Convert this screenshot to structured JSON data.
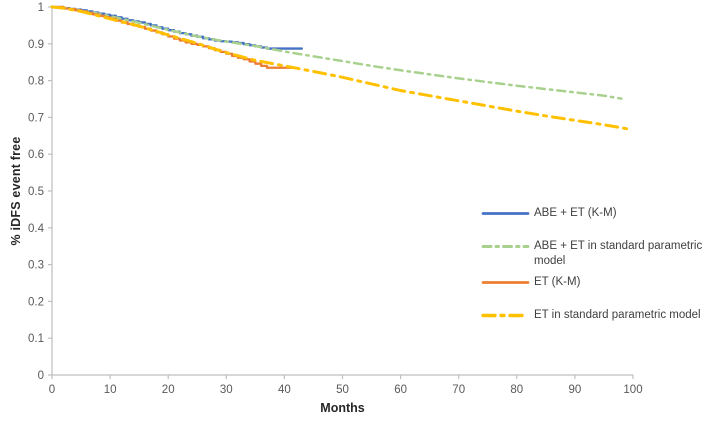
{
  "figure": {
    "background": "#ffffff"
  },
  "chart_data": {
    "type": "line",
    "title": "",
    "xlabel": "Months",
    "ylabel": "% iDFS event free",
    "xlim": [
      0,
      100
    ],
    "ylim": [
      0,
      1
    ],
    "x_ticks": [
      0,
      10,
      20,
      30,
      40,
      50,
      60,
      70,
      80,
      90,
      100
    ],
    "y_ticks": [
      1,
      0.9,
      0.8,
      0.7,
      0.6,
      0.5,
      0.4,
      0.3,
      0.2,
      0.1,
      0
    ],
    "grid": false,
    "legend_position": "right-middle",
    "axis_color": "#BFBFBF",
    "tick_label_color": "#595959",
    "series": [
      {
        "id": "abe-et-km",
        "name": "ABE + ET (K-M)",
        "color": "#4472C4",
        "line_style": "solid",
        "interpolation": "step",
        "points": [
          [
            0,
            1.0
          ],
          [
            2,
            0.997
          ],
          [
            3,
            0.995
          ],
          [
            4,
            0.993
          ],
          [
            5,
            0.991
          ],
          [
            6,
            0.988
          ],
          [
            7,
            0.985
          ],
          [
            8,
            0.982
          ],
          [
            9,
            0.979
          ],
          [
            10,
            0.976
          ],
          [
            11,
            0.972
          ],
          [
            12,
            0.968
          ],
          [
            13,
            0.964
          ],
          [
            14,
            0.961
          ],
          [
            15,
            0.958
          ],
          [
            16,
            0.954
          ],
          [
            17,
            0.95
          ],
          [
            18,
            0.945
          ],
          [
            19,
            0.941
          ],
          [
            20,
            0.937
          ],
          [
            21,
            0.933
          ],
          [
            22,
            0.929
          ],
          [
            23,
            0.926
          ],
          [
            24,
            0.922
          ],
          [
            25,
            0.919
          ],
          [
            26,
            0.915
          ],
          [
            27,
            0.912
          ],
          [
            28,
            0.909
          ],
          [
            29,
            0.907
          ],
          [
            30,
            0.906
          ],
          [
            31,
            0.904
          ],
          [
            32,
            0.902
          ],
          [
            33,
            0.899
          ],
          [
            34,
            0.896
          ],
          [
            35,
            0.893
          ],
          [
            36,
            0.89
          ],
          [
            37,
            0.887
          ],
          [
            43,
            0.887
          ]
        ]
      },
      {
        "id": "abe-et-parametric",
        "name": "ABE + ET in standard parametric model",
        "color": "#A9D18E",
        "line_style": "dash-dot",
        "interpolation": "linear",
        "points": [
          [
            0,
            1.0
          ],
          [
            2,
            0.998
          ],
          [
            5,
            0.991
          ],
          [
            10,
            0.975
          ],
          [
            15,
            0.957
          ],
          [
            20,
            0.938
          ],
          [
            25,
            0.92
          ],
          [
            30,
            0.906
          ],
          [
            35,
            0.894
          ],
          [
            40,
            0.879
          ],
          [
            43,
            0.871
          ],
          [
            45,
            0.866
          ],
          [
            50,
            0.853
          ],
          [
            55,
            0.84
          ],
          [
            60,
            0.828
          ],
          [
            65,
            0.817
          ],
          [
            70,
            0.806
          ],
          [
            75,
            0.796
          ],
          [
            80,
            0.786
          ],
          [
            85,
            0.777
          ],
          [
            90,
            0.768
          ],
          [
            95,
            0.759
          ],
          [
            98,
            0.751
          ]
        ]
      },
      {
        "id": "et-km",
        "name": "ET (K-M)",
        "color": "#ED7D31",
        "line_style": "solid",
        "interpolation": "step",
        "points": [
          [
            0,
            1.0
          ],
          [
            2,
            0.996
          ],
          [
            3,
            0.994
          ],
          [
            4,
            0.991
          ],
          [
            5,
            0.988
          ],
          [
            6,
            0.984
          ],
          [
            7,
            0.98
          ],
          [
            8,
            0.976
          ],
          [
            9,
            0.972
          ],
          [
            10,
            0.968
          ],
          [
            11,
            0.963
          ],
          [
            12,
            0.958
          ],
          [
            13,
            0.954
          ],
          [
            14,
            0.95
          ],
          [
            15,
            0.946
          ],
          [
            16,
            0.941
          ],
          [
            17,
            0.936
          ],
          [
            18,
            0.931
          ],
          [
            19,
            0.926
          ],
          [
            20,
            0.92
          ],
          [
            21,
            0.914
          ],
          [
            22,
            0.909
          ],
          [
            23,
            0.904
          ],
          [
            24,
            0.9
          ],
          [
            25,
            0.897
          ],
          [
            26,
            0.893
          ],
          [
            27,
            0.888
          ],
          [
            28,
            0.883
          ],
          [
            29,
            0.878
          ],
          [
            30,
            0.873
          ],
          [
            31,
            0.867
          ],
          [
            32,
            0.862
          ],
          [
            33,
            0.858
          ],
          [
            34,
            0.852
          ],
          [
            35,
            0.846
          ],
          [
            36,
            0.84
          ],
          [
            37,
            0.835
          ],
          [
            42,
            0.835
          ]
        ]
      },
      {
        "id": "et-parametric",
        "name": "ET in standard parametric  model",
        "color": "#FFC000",
        "line_style": "dash-dot-long",
        "interpolation": "linear",
        "points": [
          [
            0,
            1.0
          ],
          [
            2,
            0.997
          ],
          [
            5,
            0.988
          ],
          [
            10,
            0.968
          ],
          [
            15,
            0.948
          ],
          [
            20,
            0.924
          ],
          [
            25,
            0.901
          ],
          [
            30,
            0.876
          ],
          [
            35,
            0.855
          ],
          [
            40,
            0.84
          ],
          [
            42,
            0.834
          ],
          [
            45,
            0.825
          ],
          [
            50,
            0.809
          ],
          [
            55,
            0.791
          ],
          [
            60,
            0.773
          ],
          [
            65,
            0.759
          ],
          [
            70,
            0.745
          ],
          [
            75,
            0.731
          ],
          [
            80,
            0.717
          ],
          [
            85,
            0.704
          ],
          [
            90,
            0.692
          ],
          [
            95,
            0.68
          ],
          [
            99,
            0.669
          ]
        ]
      }
    ]
  }
}
